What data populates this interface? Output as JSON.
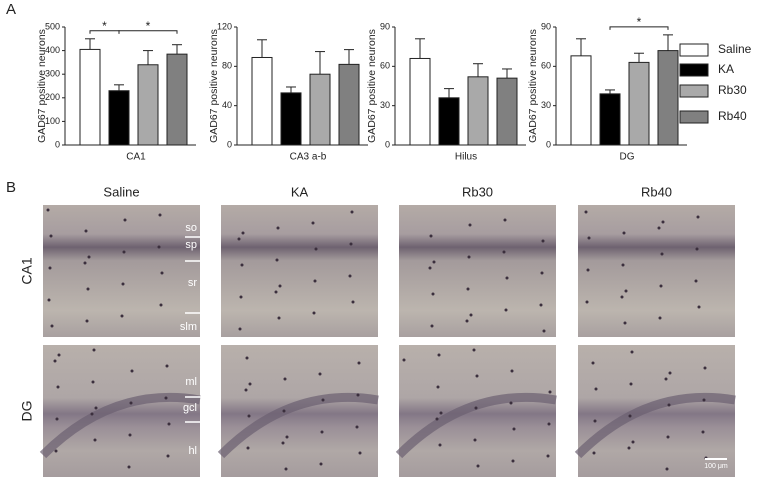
{
  "panel_labels": [
    "A",
    "B"
  ],
  "legend": [
    {
      "name": "Saline",
      "color": "#ffffff"
    },
    {
      "name": "KA",
      "color": "#000000"
    },
    {
      "name": "Rb30",
      "color": "#a9a9a9"
    },
    {
      "name": "Rb40",
      "color": "#808080"
    }
  ],
  "chart_data": [
    {
      "type": "bar",
      "xlabel": "CA1",
      "ylabel": "GAD67 positive neurons",
      "values": [
        405,
        230,
        340,
        385
      ],
      "errors": [
        45,
        25,
        60,
        40
      ],
      "ylim": [
        0,
        500
      ],
      "yticks": [
        0,
        100,
        200,
        300,
        400,
        500
      ],
      "significance": [
        {
          "from": 0,
          "to": 1,
          "label": "*"
        },
        {
          "from": 1,
          "to": 3,
          "label": "*"
        }
      ]
    },
    {
      "type": "bar",
      "xlabel": "CA3 a-b",
      "ylabel": "GAD67 positive neurons",
      "values": [
        89,
        53,
        72,
        82
      ],
      "errors": [
        18,
        6,
        23,
        15
      ],
      "ylim": [
        0,
        120
      ],
      "yticks": [
        0,
        40,
        80,
        120
      ]
    },
    {
      "type": "bar",
      "xlabel": "Hilus",
      "ylabel": "GAD67 positive neurons",
      "values": [
        66,
        36,
        52,
        51
      ],
      "errors": [
        15,
        7,
        10,
        7
      ],
      "ylim": [
        0,
        90
      ],
      "yticks": [
        0,
        30,
        60,
        90
      ]
    },
    {
      "type": "bar",
      "xlabel": "DG",
      "ylabel": "GAD67 positive neurons",
      "values": [
        68,
        39,
        63,
        72
      ],
      "errors": [
        13,
        3,
        7,
        12
      ],
      "ylim": [
        0,
        90
      ],
      "yticks": [
        0,
        30,
        60,
        90
      ],
      "significance": [
        {
          "from": 1,
          "to": 3,
          "label": "*"
        }
      ]
    }
  ],
  "panel_b": {
    "columns": [
      "Saline",
      "KA",
      "Rb30",
      "Rb40"
    ],
    "rows": [
      "CA1",
      "DG"
    ],
    "ca1_layers": [
      "so",
      "sp",
      "sr",
      "slm"
    ],
    "dg_layers": [
      "ml",
      "gcl",
      "hl"
    ],
    "scale_bar": "100 μm"
  }
}
